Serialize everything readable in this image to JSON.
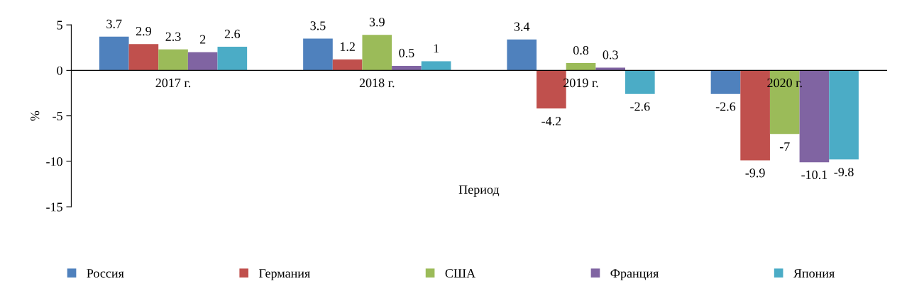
{
  "chart_data": {
    "type": "bar",
    "ylabel": "%",
    "xlabel": "Период",
    "categories": [
      "2017 г.",
      "2018 г.",
      "2019 г.",
      "2020 г."
    ],
    "series": [
      {
        "name": "Россия",
        "color": "#4f81bd",
        "values": [
          3.7,
          3.5,
          3.4,
          -2.6
        ]
      },
      {
        "name": "Германия",
        "color": "#c0504d",
        "values": [
          2.9,
          1.2,
          -4.2,
          -9.9
        ]
      },
      {
        "name": "США",
        "color": "#9bbb59",
        "values": [
          2.3,
          3.9,
          0.8,
          -7
        ]
      },
      {
        "name": "Франция",
        "color": "#8064a2",
        "values": [
          2,
          0.5,
          0.3,
          -10.1
        ]
      },
      {
        "name": "Япония",
        "color": "#4bacc6",
        "values": [
          2.6,
          1,
          -2.6,
          -9.8
        ]
      }
    ],
    "ylim": [
      -15,
      5
    ],
    "yticks": [
      -15,
      -10,
      -5,
      0,
      5
    ],
    "data_labels": true,
    "grid": false,
    "legend": "bottom"
  }
}
